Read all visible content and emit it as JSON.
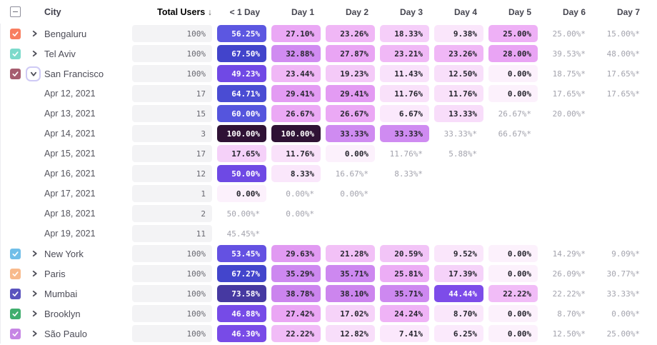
{
  "header": {
    "city_label": "City",
    "total_users_label": "Total Users",
    "sort_arrow": "↓",
    "select_all_state": "indeterminate",
    "day_columns": [
      "< 1 Day",
      "Day 1",
      "Day 2",
      "Day 3",
      "Day 4",
      "Day 5",
      "Day 6",
      "Day 7"
    ]
  },
  "colors": {
    "accent_sort_header": "#564DE0",
    "heat_text_dark": "#26262E",
    "heat_text_light": "#FFFFFF",
    "white_text_min_value": 44,
    "starred_text": "#A3A3AD",
    "total_box_bg": "#F3F3F5",
    "heat_scale": [
      [
        0,
        "#FCF1FC"
      ],
      [
        6,
        "#FBEAFC"
      ],
      [
        10,
        "#FAE5FB"
      ],
      [
        13,
        "#F8DEFA"
      ],
      [
        18,
        "#F5D0F9"
      ],
      [
        21,
        "#F2C2F7"
      ],
      [
        24,
        "#EFB4F6"
      ],
      [
        26,
        "#ECACF5"
      ],
      [
        28.5,
        "#E8A2F4"
      ],
      [
        30,
        "#DF97F2"
      ],
      [
        33,
        "#CF8BF1"
      ],
      [
        39,
        "#CB84EE"
      ],
      [
        43.9,
        "#C87FED"
      ],
      [
        44,
        "#7E4CE9"
      ],
      [
        50,
        "#6E49E4"
      ],
      [
        56,
        "#5C57E1"
      ],
      [
        62,
        "#5154DB"
      ],
      [
        67.5,
        "#4244CB"
      ],
      [
        74,
        "#46389E"
      ],
      [
        88,
        "#3A2065"
      ],
      [
        100,
        "#2F1235"
      ]
    ]
  },
  "rows": [
    {
      "type": "city",
      "label": "Bengaluru",
      "checkbox_color": "#F87E60",
      "checked": true,
      "expanded": false,
      "total": "100%",
      "cells": [
        {
          "t": "56.25%",
          "v": 56.25
        },
        {
          "t": "27.10%",
          "v": 27.1
        },
        {
          "t": "23.26%",
          "v": 23.26
        },
        {
          "t": "18.33%",
          "v": 18.33
        },
        {
          "t": "9.38%",
          "v": 9.38
        },
        {
          "t": "25.00%",
          "v": 25.0
        },
        {
          "t": "25.00%*",
          "v": 25.0,
          "s": true
        },
        {
          "t": "15.00%*",
          "v": 15.0,
          "s": true
        }
      ]
    },
    {
      "type": "city",
      "label": "Tel Aviv",
      "checkbox_color": "#7CDACB",
      "checked": true,
      "expanded": false,
      "total": "100%",
      "cells": [
        {
          "t": "67.50%",
          "v": 67.5
        },
        {
          "t": "32.88%",
          "v": 32.88
        },
        {
          "t": "27.87%",
          "v": 27.87
        },
        {
          "t": "23.21%",
          "v": 23.21
        },
        {
          "t": "23.26%",
          "v": 23.26
        },
        {
          "t": "28.00%",
          "v": 28.0
        },
        {
          "t": "39.53%*",
          "v": 39.53,
          "s": true
        },
        {
          "t": "48.00%*",
          "v": 48.0,
          "s": true
        }
      ]
    },
    {
      "type": "city",
      "label": "San Francisco",
      "checkbox_color": "#A65C6F",
      "checked": true,
      "expanded": true,
      "total": "100%",
      "cells": [
        {
          "t": "49.23%",
          "v": 49.23
        },
        {
          "t": "23.44%",
          "v": 23.44
        },
        {
          "t": "19.23%",
          "v": 19.23
        },
        {
          "t": "11.43%",
          "v": 11.43
        },
        {
          "t": "12.50%",
          "v": 12.5
        },
        {
          "t": "0.00%",
          "v": 0
        },
        {
          "t": "18.75%*",
          "v": 18.75,
          "s": true
        },
        {
          "t": "17.65%*",
          "v": 17.65,
          "s": true
        }
      ]
    },
    {
      "type": "date",
      "label": "Apr 12, 2021",
      "total": "17",
      "cells": [
        {
          "t": "64.71%",
          "v": 64.71
        },
        {
          "t": "29.41%",
          "v": 29.41
        },
        {
          "t": "29.41%",
          "v": 29.41
        },
        {
          "t": "11.76%",
          "v": 11.76
        },
        {
          "t": "11.76%",
          "v": 11.76
        },
        {
          "t": "0.00%",
          "v": 0
        },
        {
          "t": "17.65%*",
          "v": 17.65,
          "s": true
        },
        {
          "t": "17.65%*",
          "v": 17.65,
          "s": true
        }
      ]
    },
    {
      "type": "date",
      "label": "Apr 13, 2021",
      "total": "15",
      "cells": [
        {
          "t": "60.00%",
          "v": 60.0
        },
        {
          "t": "26.67%",
          "v": 26.67
        },
        {
          "t": "26.67%",
          "v": 26.67
        },
        {
          "t": "6.67%",
          "v": 6.67
        },
        {
          "t": "13.33%",
          "v": 13.33
        },
        {
          "t": "26.67%*",
          "v": 26.67,
          "s": true
        },
        {
          "t": "20.00%*",
          "v": 20.0,
          "s": true
        },
        null
      ]
    },
    {
      "type": "date",
      "label": "Apr 14, 2021",
      "total": "3",
      "cells": [
        {
          "t": "100.00%",
          "v": 100
        },
        {
          "t": "100.00%",
          "v": 100
        },
        {
          "t": "33.33%",
          "v": 33.33
        },
        {
          "t": "33.33%",
          "v": 33.33
        },
        {
          "t": "33.33%*",
          "v": 33.33,
          "s": true
        },
        {
          "t": "66.67%*",
          "v": 66.67,
          "s": true
        },
        null,
        null
      ]
    },
    {
      "type": "date",
      "label": "Apr 15, 2021",
      "total": "17",
      "cells": [
        {
          "t": "17.65%",
          "v": 17.65
        },
        {
          "t": "11.76%",
          "v": 11.76
        },
        {
          "t": "0.00%",
          "v": 0
        },
        {
          "t": "11.76%*",
          "v": 11.76,
          "s": true
        },
        {
          "t": "5.88%*",
          "v": 5.88,
          "s": true
        },
        null,
        null,
        null
      ]
    },
    {
      "type": "date",
      "label": "Apr 16, 2021",
      "total": "12",
      "cells": [
        {
          "t": "50.00%",
          "v": 50.0
        },
        {
          "t": "8.33%",
          "v": 8.33
        },
        {
          "t": "16.67%*",
          "v": 16.67,
          "s": true
        },
        {
          "t": "8.33%*",
          "v": 8.33,
          "s": true
        },
        null,
        null,
        null,
        null
      ]
    },
    {
      "type": "date",
      "label": "Apr 17, 2021",
      "total": "1",
      "cells": [
        {
          "t": "0.00%",
          "v": 0
        },
        {
          "t": "0.00%*",
          "v": 0,
          "s": true
        },
        {
          "t": "0.00%*",
          "v": 0,
          "s": true
        },
        null,
        null,
        null,
        null,
        null
      ]
    },
    {
      "type": "date",
      "label": "Apr 18, 2021",
      "total": "2",
      "cells": [
        {
          "t": "50.00%*",
          "v": 50.0,
          "s": true
        },
        {
          "t": "0.00%*",
          "v": 0,
          "s": true
        },
        null,
        null,
        null,
        null,
        null,
        null
      ]
    },
    {
      "type": "date",
      "label": "Apr 19, 2021",
      "total": "11",
      "cells": [
        {
          "t": "45.45%*",
          "v": 45.45,
          "s": true
        },
        null,
        null,
        null,
        null,
        null,
        null,
        null
      ]
    },
    {
      "type": "city",
      "label": "New York",
      "checkbox_color": "#70BEE8",
      "checked": true,
      "expanded": false,
      "total": "100%",
      "cells": [
        {
          "t": "53.45%",
          "v": 53.45
        },
        {
          "t": "29.63%",
          "v": 29.63
        },
        {
          "t": "21.28%",
          "v": 21.28
        },
        {
          "t": "20.59%",
          "v": 20.59
        },
        {
          "t": "9.52%",
          "v": 9.52
        },
        {
          "t": "0.00%",
          "v": 0
        },
        {
          "t": "14.29%*",
          "v": 14.29,
          "s": true
        },
        {
          "t": "9.09%*",
          "v": 9.09,
          "s": true
        }
      ]
    },
    {
      "type": "city",
      "label": "Paris",
      "checkbox_color": "#F8BA8C",
      "checked": true,
      "expanded": false,
      "total": "100%",
      "cells": [
        {
          "t": "67.27%",
          "v": 67.27
        },
        {
          "t": "35.29%",
          "v": 35.29
        },
        {
          "t": "35.71%",
          "v": 35.71
        },
        {
          "t": "25.81%",
          "v": 25.81
        },
        {
          "t": "17.39%",
          "v": 17.39
        },
        {
          "t": "0.00%",
          "v": 0
        },
        {
          "t": "26.09%*",
          "v": 26.09,
          "s": true
        },
        {
          "t": "30.77%*",
          "v": 30.77,
          "s": true
        }
      ]
    },
    {
      "type": "city",
      "label": "Mumbai",
      "checkbox_color": "#5A53BE",
      "checked": true,
      "expanded": false,
      "total": "100%",
      "cells": [
        {
          "t": "73.58%",
          "v": 73.58
        },
        {
          "t": "38.78%",
          "v": 38.78
        },
        {
          "t": "38.10%",
          "v": 38.1
        },
        {
          "t": "35.71%",
          "v": 35.71
        },
        {
          "t": "44.44%",
          "v": 44.44
        },
        {
          "t": "22.22%",
          "v": 22.22
        },
        {
          "t": "22.22%*",
          "v": 22.22,
          "s": true
        },
        {
          "t": "33.33%*",
          "v": 33.33,
          "s": true
        }
      ]
    },
    {
      "type": "city",
      "label": "Brooklyn",
      "checkbox_color": "#40AE6E",
      "checked": true,
      "expanded": false,
      "total": "100%",
      "cells": [
        {
          "t": "46.88%",
          "v": 46.88
        },
        {
          "t": "27.42%",
          "v": 27.42
        },
        {
          "t": "17.02%",
          "v": 17.02
        },
        {
          "t": "24.24%",
          "v": 24.24
        },
        {
          "t": "8.70%",
          "v": 8.7
        },
        {
          "t": "0.00%",
          "v": 0
        },
        {
          "t": "8.70%*",
          "v": 8.7,
          "s": true
        },
        {
          "t": "0.00%*",
          "v": 0,
          "s": true
        }
      ]
    },
    {
      "type": "city",
      "label": "São Paulo",
      "checkbox_color": "#C685E4",
      "checked": true,
      "expanded": false,
      "total": "100%",
      "cells": [
        {
          "t": "46.30%",
          "v": 46.3
        },
        {
          "t": "22.22%",
          "v": 22.22
        },
        {
          "t": "12.82%",
          "v": 12.82
        },
        {
          "t": "7.41%",
          "v": 7.41
        },
        {
          "t": "6.25%",
          "v": 6.25
        },
        {
          "t": "0.00%",
          "v": 0
        },
        {
          "t": "12.50%*",
          "v": 12.5,
          "s": true
        },
        {
          "t": "25.00%*",
          "v": 25.0,
          "s": true
        }
      ]
    }
  ]
}
